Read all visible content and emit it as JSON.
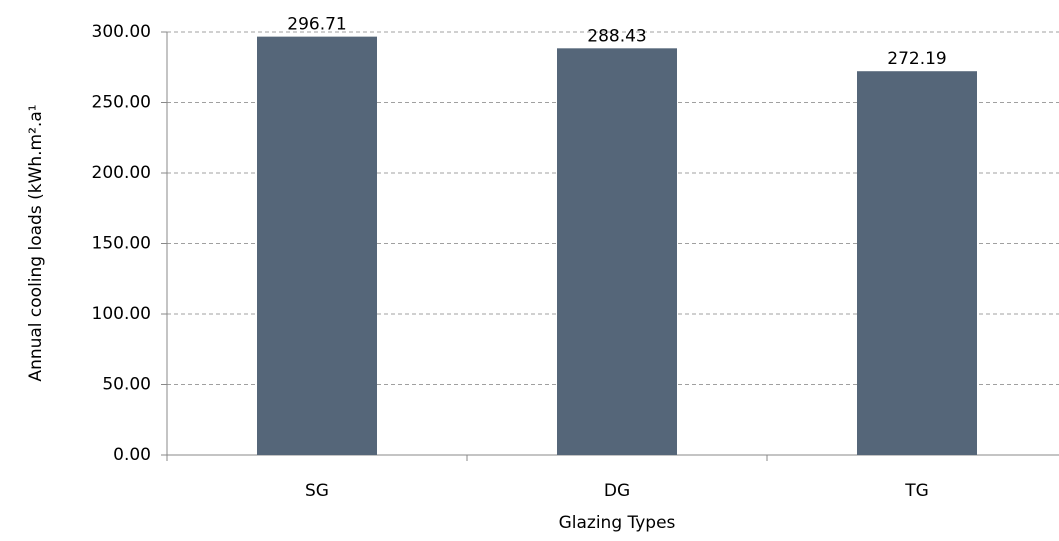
{
  "chart_data": {
    "type": "bar",
    "y_label": "Annual cooling loads (kWh.m².a¹",
    "x_label": "Glazing Types",
    "categories": [
      "SG",
      "DG",
      "TG"
    ],
    "values": [
      296.71,
      288.43,
      272.19
    ],
    "color": "#556679",
    "ylim": [
      0,
      300
    ],
    "yticks": [
      {
        "value": 0,
        "label": "0.00"
      },
      {
        "value": 50,
        "label": "50.00"
      },
      {
        "value": 100,
        "label": "100.00"
      },
      {
        "value": 150,
        "label": "150.00"
      },
      {
        "value": 200,
        "label": "200.00"
      },
      {
        "value": 250,
        "label": "250.00"
      },
      {
        "value": 300,
        "label": "300.00"
      }
    ],
    "grid": true
  }
}
